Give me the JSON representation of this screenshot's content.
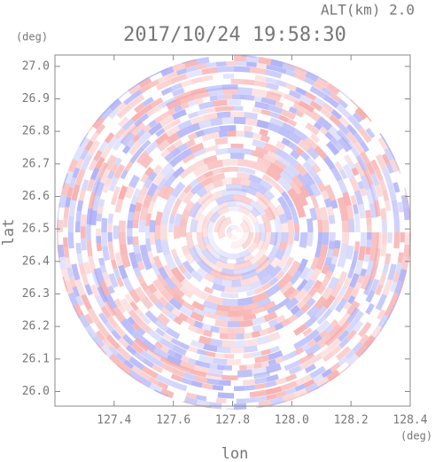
{
  "chart_data": {
    "type": "radar",
    "title": "2017/10/24 19:58:30",
    "subtitle": "ALT(km) 2.0",
    "x_label": "lon",
    "y_label": "lat",
    "x_unit": "(deg)",
    "y_unit": "(deg)",
    "xlim": [
      127.2,
      128.4
    ],
    "ylim": [
      25.955,
      27.035
    ],
    "xticks": [
      127.4,
      127.6,
      127.8,
      {
        "value": 128.0,
        "label": "128.0"
      },
      128.2,
      128.4
    ],
    "yticks": [
      {
        "value": 26.0,
        "label": "26.0"
      },
      26.1,
      26.2,
      26.3,
      26.4,
      26.5,
      26.6,
      26.7,
      26.8,
      26.9,
      {
        "value": 27.0,
        "label": "27.0"
      }
    ],
    "colors": [
      "#f7a9a9",
      "#a9acf7"
    ]
  }
}
